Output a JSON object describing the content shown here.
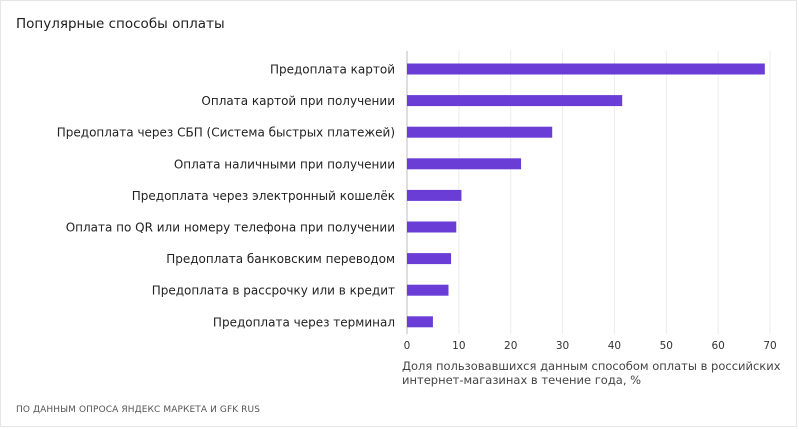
{
  "title": "Популярные способы оплаты",
  "source": "ПО ДАННЫМ ОПРОСА ЯНДЕКС МАРКЕТА И GFK RUS",
  "colors": {
    "bar": "#6a3ed6",
    "grid": "#ececec",
    "axis": "#bdbdbd"
  },
  "chart_data": {
    "type": "bar",
    "orientation": "horizontal",
    "categories": [
      "Предоплата картой",
      "Оплата картой при получении",
      "Предоплата через СБП (Система быстрых платежей)",
      "Оплата наличными при получении",
      "Предоплата через электронный кошелёк",
      "Оплата по QR или номеру телефона при получении",
      "Предоплата банковским переводом",
      "Предоплата в рассрочку или в кредит",
      "Предоплата через терминал"
    ],
    "values": [
      69,
      41.5,
      28,
      22,
      10.5,
      9.5,
      8.5,
      8,
      5
    ],
    "xlabel_lines": [
      "Доля пользовавшихся данным способом оплаты в российских",
      "интернет-магазинах в течение года, %"
    ],
    "xlim": [
      0,
      70
    ],
    "xticks": [
      0,
      10,
      20,
      30,
      40,
      50,
      60,
      70
    ],
    "grid": true
  }
}
